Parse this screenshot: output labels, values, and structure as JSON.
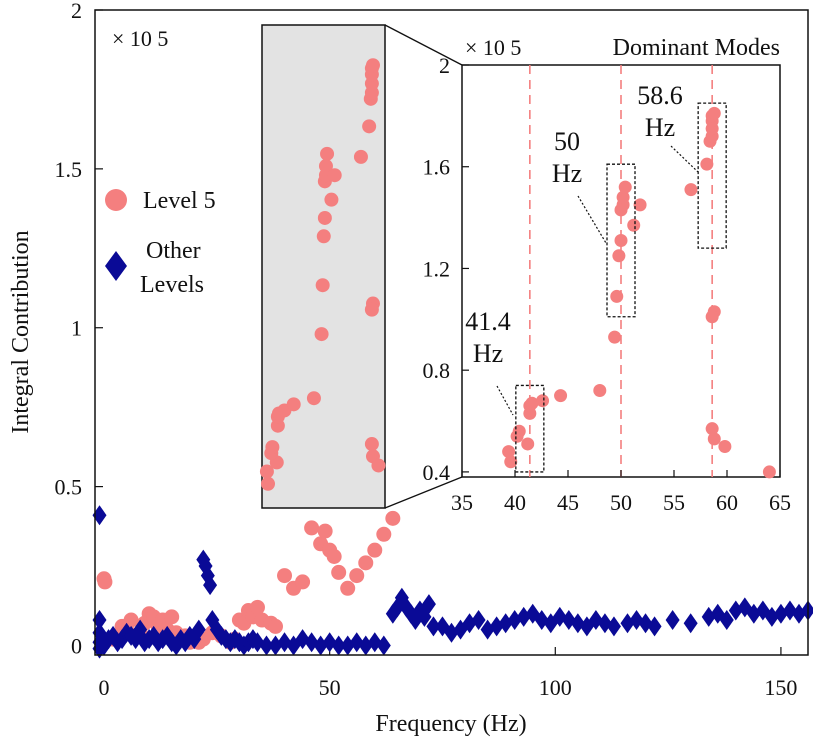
{
  "chart_data": {
    "type": "scatter",
    "xlabel": "Frequency (Hz)",
    "ylabel": "Integral  Contribution",
    "xlim": [
      -2,
      156
    ],
    "ylim": [
      -3000,
      200000
    ],
    "xticks": [
      0,
      50,
      100,
      150
    ],
    "yticks": [
      {
        "value": 0,
        "label": "0"
      },
      {
        "value": 50000,
        "label": "0.5"
      },
      {
        "value": 100000,
        "label": "1"
      },
      {
        "value": 150000,
        "label": "1.5"
      },
      {
        "value": 200000,
        "label": "2"
      }
    ],
    "scale_label": "× 10 5",
    "grid": false,
    "legend_position": "left",
    "legend": [
      {
        "label": "Level 5",
        "marker": "circle",
        "color": "#f47f7f"
      },
      {
        "label_lines": [
          "Other",
          "Levels"
        ],
        "marker": "diamond",
        "color": "#0a0a96"
      }
    ],
    "series": [
      {
        "name": "Level 5",
        "marker": "circle",
        "color": "#f47f7f",
        "x": [
          0,
          0.2,
          2,
          3,
          4,
          5,
          6,
          7,
          8,
          9,
          10,
          11,
          12,
          13,
          14,
          15,
          16,
          17,
          18,
          19,
          20,
          21,
          22,
          24,
          26,
          28,
          29,
          30,
          31,
          32,
          33,
          34,
          35,
          37,
          38,
          40,
          42,
          44,
          46,
          48,
          49,
          50,
          51,
          52,
          54,
          56,
          58,
          60,
          62,
          64,
          39.6,
          39.4,
          41.2,
          40.2,
          40.4,
          41.4,
          41.4,
          41.6,
          42.6,
          44.3,
          48,
          49.4,
          49.6,
          49.8,
          50,
          50,
          50.2,
          50.2,
          50.4,
          51.2,
          51.8,
          56.6,
          58.1,
          58.4,
          58.6,
          58.6,
          58.6,
          58.6,
          58.8,
          58.8,
          58.6,
          58.6,
          58.8,
          59.8
        ],
        "y": [
          21000,
          20000,
          2000,
          3000,
          6000,
          5000,
          8000,
          3000,
          4000,
          7000,
          10000,
          9000,
          6000,
          8000,
          5000,
          9000,
          4000,
          2000,
          3000,
          1000,
          2000,
          1000,
          2000,
          4000,
          3000,
          1000,
          2000,
          8000,
          7000,
          11000,
          9000,
          12000,
          8000,
          7000,
          6000,
          22000,
          18000,
          20000,
          37000,
          32000,
          36000,
          30000,
          28000,
          23000,
          18000,
          22000,
          26000,
          30000,
          35000,
          40000,
          44000,
          48000,
          51000,
          54000,
          56000,
          63000,
          66000,
          67000,
          68000,
          70000,
          72000,
          93000,
          109000,
          125000,
          131000,
          143000,
          145000,
          148000,
          152000,
          137000,
          145000,
          151000,
          161000,
          170000,
          172000,
          175000,
          178000,
          180000,
          181000,
          103000,
          101000,
          57000,
          53000,
          50000
        ]
      },
      {
        "name": "Other Levels",
        "marker": "diamond",
        "color": "#0a0a96",
        "x": [
          -1,
          -1,
          -1,
          -1,
          -1,
          0,
          1,
          2,
          3,
          4,
          5,
          6,
          7,
          8,
          9,
          10,
          11,
          12,
          13,
          14,
          15,
          16,
          17,
          18,
          19,
          20,
          21,
          22,
          22.5,
          23,
          23.5,
          24,
          25,
          26,
          27,
          28,
          29,
          30,
          31,
          32,
          33,
          34,
          36,
          38,
          40,
          42,
          44,
          46,
          48,
          50,
          52,
          54,
          56,
          58,
          60,
          62,
          64,
          65,
          66,
          67,
          68,
          69,
          70,
          71,
          72,
          73,
          75,
          77,
          79,
          81,
          83,
          85,
          87,
          89,
          91,
          93,
          95,
          97,
          99,
          101,
          103,
          105,
          107,
          109,
          111,
          113,
          116,
          118,
          120,
          122,
          126,
          130,
          134,
          136,
          138,
          140,
          142,
          144,
          146,
          148,
          150,
          152,
          154,
          156
        ],
        "y": [
          41000,
          8000,
          4000,
          1000,
          -1000,
          0,
          2000,
          3000,
          1000,
          2000,
          4000,
          3000,
          2000,
          5000,
          1000,
          2000,
          3000,
          1000,
          2000,
          3000,
          1000,
          0,
          2000,
          1000,
          3000,
          2000,
          5000,
          27000,
          25000,
          22000,
          19000,
          8000,
          5000,
          3000,
          2000,
          1000,
          2000,
          1000,
          0,
          1000,
          2000,
          1000,
          0,
          0,
          1000,
          0,
          2000,
          1000,
          0,
          1000,
          0,
          0,
          1000,
          0,
          1000,
          0,
          10000,
          12000,
          15000,
          12000,
          10000,
          8000,
          11000,
          9000,
          13000,
          6000,
          6000,
          4000,
          5000,
          7000,
          8000,
          5000,
          6000,
          7000,
          8000,
          9000,
          10000,
          8000,
          7000,
          9000,
          8000,
          7000,
          6000,
          8000,
          7000,
          6000,
          7000,
          8000,
          7000,
          6000,
          8000,
          7000,
          9000,
          10000,
          8000,
          11000,
          12000,
          10000,
          11000,
          9000,
          10000,
          11000,
          10000,
          11000
        ]
      }
    ],
    "inset": {
      "title": "Dominant Modes",
      "scale_label": "× 10 5",
      "xlim": [
        35,
        65
      ],
      "ylim": [
        38000,
        200000
      ],
      "xticks": [
        35,
        40,
        45,
        50,
        55,
        60,
        65
      ],
      "yticks": [
        {
          "value": 40000,
          "label": "0.4"
        },
        {
          "value": 80000,
          "label": "0.8"
        },
        {
          "value": 120000,
          "label": "1.2"
        },
        {
          "value": 160000,
          "label": "1.6"
        },
        {
          "value": 200000,
          "label": "2"
        }
      ],
      "reference_lines": [
        41.4,
        50,
        58.6
      ],
      "reference_line_color": "#f47f7f",
      "annotations": [
        {
          "lines": [
            "41.4",
            "Hz"
          ],
          "x": 41.4,
          "box_ylim": [
            40000,
            74000
          ]
        },
        {
          "lines": [
            "50",
            "Hz"
          ],
          "x": 50,
          "box_ylim": [
            101000,
            161000
          ]
        },
        {
          "lines": [
            "58.6",
            "Hz"
          ],
          "x": 58.6,
          "box_ylim": [
            128000,
            185000
          ]
        }
      ]
    }
  }
}
